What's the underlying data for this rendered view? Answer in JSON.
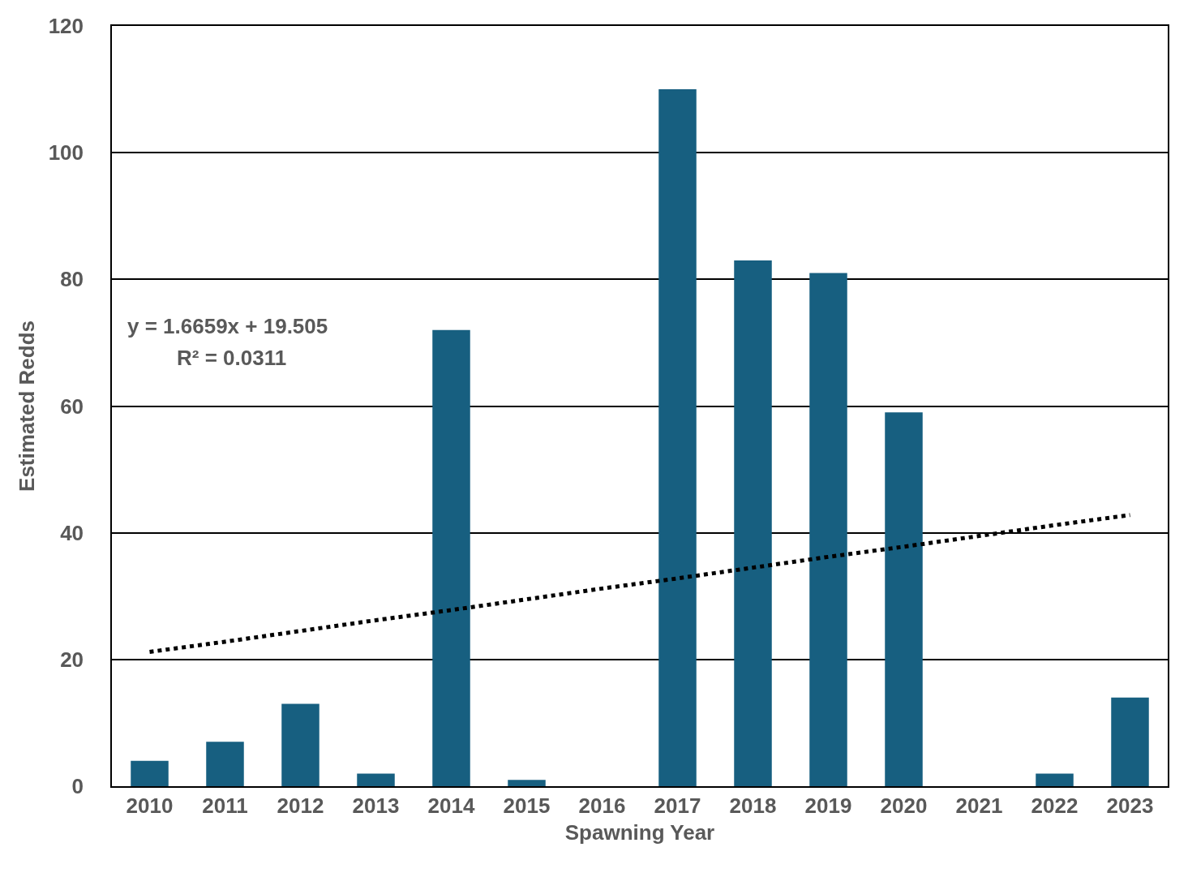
{
  "chart_data": {
    "type": "bar",
    "xlabel": "Spawning Year",
    "ylabel": "Estimated Redds",
    "categories": [
      "2010",
      "2011",
      "2012",
      "2013",
      "2014",
      "2015",
      "2016",
      "2017",
      "2018",
      "2019",
      "2020",
      "2021",
      "2022",
      "2023"
    ],
    "series": [
      {
        "color": "#175f80",
        "values": [
          4,
          7,
          13,
          2,
          72,
          1,
          0,
          110,
          83,
          81,
          59,
          0,
          2,
          14
        ]
      },
      {
        "type": "line",
        "color": "#000000",
        "line_style": "dotted",
        "marker": "none",
        "values": [
          21.2,
          22.8,
          24.5,
          26.2,
          27.8,
          29.5,
          31.2,
          32.8,
          34.5,
          36.2,
          37.8,
          39.5,
          41.2,
          42.8
        ]
      }
    ],
    "ylim": [
      0,
      120
    ],
    "yticks": [
      0,
      20,
      40,
      60,
      80,
      100,
      120
    ],
    "grid": "y",
    "annotations": [
      "y = 1.6659x + 19.505",
      "R² = 0.0311"
    ]
  }
}
